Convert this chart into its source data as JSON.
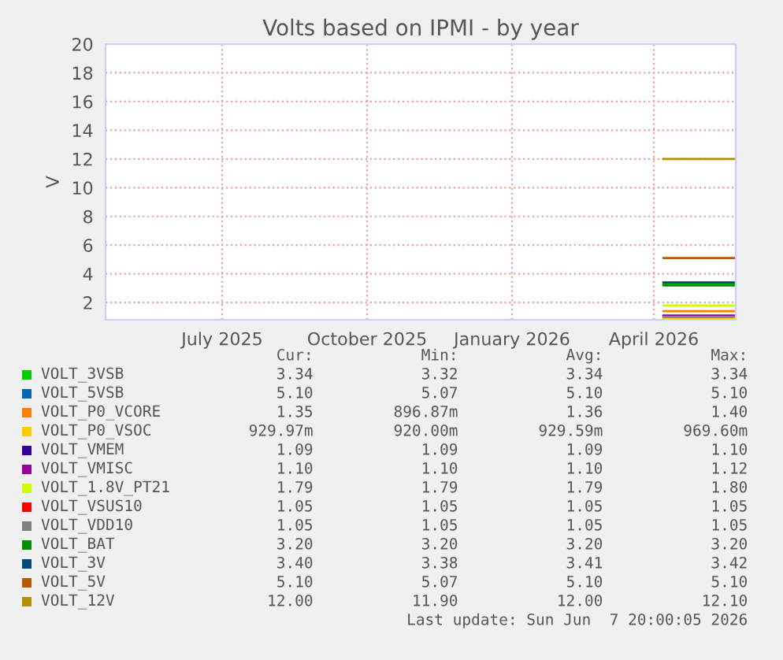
{
  "chart_data": {
    "type": "line",
    "title": "Volts based on IPMI - by year",
    "ylabel": "V",
    "x": [
      "2026-04-22",
      "2026-06-07"
    ],
    "xlim": [
      "2025-05-03",
      "2026-06-07"
    ],
    "xticks": [
      {
        "value": "2025-07-16",
        "label": "July 2025"
      },
      {
        "value": "2025-10-16",
        "label": "October 2025"
      },
      {
        "value": "2026-01-16",
        "label": "January 2026"
      },
      {
        "value": "2026-04-16",
        "label": "April 2026"
      }
    ],
    "ylim": [
      0.8,
      20
    ],
    "yticks": [
      2,
      4,
      6,
      8,
      10,
      12,
      14,
      16,
      18,
      20
    ],
    "grid": true,
    "legend": "bottom",
    "line_style": "solid",
    "marker": "none",
    "series": [
      {
        "name": "VOLT_3VSB",
        "color": "#00cc00",
        "values": [
          3.3,
          3.3
        ]
      },
      {
        "name": "VOLT_5VSB",
        "color": "#0066b3",
        "values": [
          null,
          null
        ]
      },
      {
        "name": "VOLT_P0_VCORE",
        "color": "#ff8000",
        "values": [
          1.4,
          1.4
        ]
      },
      {
        "name": "VOLT_P0_VSOC",
        "color": "#ffcc00",
        "values": [
          0.9,
          0.9
        ]
      },
      {
        "name": "VOLT_VMEM",
        "color": "#330099",
        "values": [
          null,
          null
        ]
      },
      {
        "name": "VOLT_VMISC",
        "color": "#990099",
        "values": [
          1.1,
          1.1
        ]
      },
      {
        "name": "VOLT_1.8V_PT21",
        "color": "#ccff00",
        "values": [
          1.8,
          1.8
        ]
      },
      {
        "name": "VOLT_VSUS10",
        "color": "#ff0000",
        "values": [
          null,
          null
        ]
      },
      {
        "name": "VOLT_VDD10",
        "color": "#808080",
        "values": [
          1.0,
          1.0
        ]
      },
      {
        "name": "VOLT_BAT",
        "color": "#008f00",
        "values": [
          3.2,
          3.2
        ]
      },
      {
        "name": "VOLT_3V",
        "color": "#00487d",
        "values": [
          3.4,
          3.4
        ]
      },
      {
        "name": "VOLT_5V",
        "color": "#b35a00",
        "values": [
          5.1,
          5.1
        ]
      },
      {
        "name": "VOLT_12V",
        "color": "#b38f00",
        "values": [
          12.0,
          12.0
        ]
      }
    ],
    "annotations": [
      "Cur: Min: Avg: Max:",
      "3.34 3.32 3.34 3.34",
      "5.10 5.07 5.10 5.10",
      "1.35 896.87m 1.36 1.40",
      "929.97m 920.00m 929.59m 969.60m",
      "1.09 1.09 1.09 1.10",
      "1.10 1.10 1.10 1.12",
      "1.79 1.79 1.79 1.80",
      "1.05 1.05 1.05 1.05",
      "1.05 1.05 1.05 1.05",
      "3.20 3.20 3.20 3.20",
      "3.40 3.38 3.41 3.42",
      "5.10 5.07 5.10 5.10",
      "12.00 11.90 12.00 12.10",
      "Last update: Sun Jun  7 20:00:05 2026"
    ]
  }
}
